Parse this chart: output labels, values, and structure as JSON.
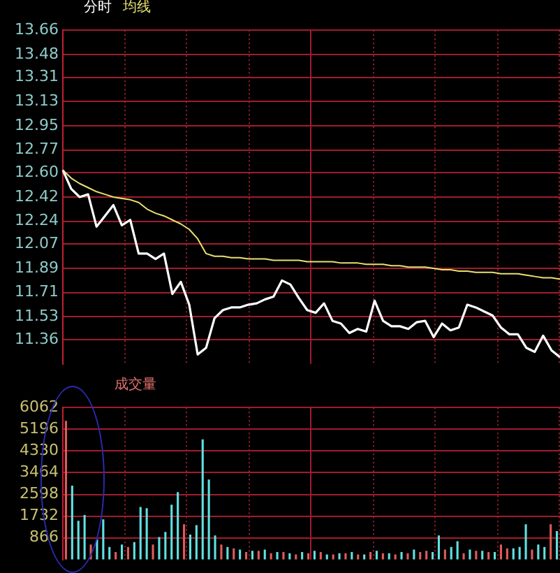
{
  "chart_data": [
    {
      "type": "line",
      "marker": "none",
      "grid": true,
      "tick_labels": "y",
      "categories": [
        null,
        null,
        null,
        null,
        null,
        null,
        null,
        null,
        null,
        null,
        null,
        null,
        null,
        null,
        null,
        null,
        null,
        null,
        null,
        null,
        null,
        null,
        null,
        null,
        null,
        null,
        null,
        null,
        null,
        null,
        null,
        null,
        null,
        null,
        null,
        null,
        null,
        null,
        null,
        null,
        null,
        null,
        null,
        null,
        null,
        null,
        null,
        null,
        null,
        null,
        null,
        null,
        null,
        null,
        null,
        null,
        null,
        null,
        null,
        null
      ],
      "ylim": [
        11.18,
        13.66
      ],
      "yticks": [
        13.66,
        13.48,
        13.31,
        13.13,
        12.95,
        12.77,
        {
          "value": 12.6,
          "label": "12.60"
        },
        12.42,
        12.24,
        12.07,
        11.89,
        11.71,
        11.53,
        11.36
      ],
      "series": [
        {
          "name": "分时",
          "color": "#ffffff",
          "values": [
            12.62,
            12.48,
            12.42,
            12.44,
            12.2,
            12.28,
            12.36,
            12.21,
            12.25,
            12.0,
            12.0,
            11.96,
            12.0,
            11.7,
            11.79,
            11.62,
            11.25,
            11.3,
            11.52,
            11.58,
            11.6,
            11.6,
            11.62,
            11.63,
            11.66,
            11.68,
            11.8,
            11.77,
            11.67,
            11.58,
            11.56,
            11.63,
            11.5,
            11.48,
            11.41,
            11.44,
            11.42,
            11.65,
            11.5,
            11.46,
            11.46,
            11.44,
            11.49,
            11.5,
            11.38,
            11.48,
            11.43,
            11.45,
            11.62,
            11.6,
            11.57,
            11.54,
            11.45,
            11.4,
            11.4,
            11.3,
            11.27,
            11.39,
            11.28,
            11.23
          ]
        },
        {
          "name": "均线",
          "color": "#e8e070",
          "values": [
            12.62,
            12.56,
            12.52,
            12.49,
            12.46,
            12.44,
            12.42,
            12.41,
            12.4,
            12.38,
            12.33,
            12.3,
            12.28,
            12.25,
            12.22,
            12.18,
            12.11,
            12.0,
            11.98,
            11.98,
            11.97,
            11.97,
            11.96,
            11.96,
            11.96,
            11.95,
            11.95,
            11.95,
            11.95,
            11.94,
            11.94,
            11.94,
            11.94,
            11.93,
            11.93,
            11.93,
            11.92,
            11.92,
            11.92,
            11.91,
            11.91,
            11.9,
            11.9,
            11.9,
            11.89,
            11.88,
            11.88,
            11.87,
            11.87,
            11.86,
            11.86,
            11.86,
            11.85,
            11.85,
            11.85,
            11.84,
            11.83,
            11.82,
            11.82,
            11.81
          ]
        }
      ]
    },
    {
      "type": "bar",
      "title": "成交量",
      "grid": true,
      "tick_labels": "y",
      "categories": [
        null,
        null,
        null,
        null,
        null,
        null,
        null,
        null,
        null,
        null,
        null,
        null,
        null,
        null,
        null,
        null,
        null,
        null,
        null,
        null,
        null,
        null,
        null,
        null,
        null,
        null,
        null,
        null,
        null,
        null,
        null,
        null,
        null,
        null,
        null,
        null,
        null,
        null,
        null,
        null,
        null,
        null,
        null,
        null,
        null,
        null,
        null,
        null,
        null,
        null,
        null,
        null,
        null,
        null,
        null,
        null,
        null,
        null,
        null,
        null,
        null,
        null,
        null,
        null,
        null,
        null,
        null,
        null,
        null,
        null,
        null,
        null,
        null,
        null,
        null,
        null,
        null,
        null,
        null,
        null
      ],
      "ylim": [
        0,
        6062
      ],
      "yticks": [
        866,
        1732,
        2598,
        3464,
        4330,
        5196,
        6062
      ],
      "values": [
        5530,
        2950,
        1550,
        1780,
        600,
        800,
        1600,
        500,
        300,
        600,
        500,
        700,
        2100,
        2050,
        600,
        900,
        1100,
        2190,
        2690,
        1410,
        1000,
        1370,
        4790,
        3190,
        960,
        600,
        500,
        450,
        400,
        300,
        350,
        350,
        400,
        250,
        300,
        300,
        250,
        200,
        300,
        250,
        350,
        300,
        200,
        200,
        250,
        250,
        300,
        200,
        200,
        300,
        350,
        250,
        250,
        200,
        300,
        250,
        400,
        300,
        350,
        300,
        960,
        400,
        500,
        730,
        250,
        400,
        350,
        350,
        300,
        300,
        600,
        450,
        450,
        500,
        1410,
        400,
        600,
        500,
        1410,
        1140
      ],
      "colors": [
        "#e05a5a",
        "#60e0e0",
        "#60e0e0",
        "#60e0e0",
        "#e05a5a",
        "#60e0e0",
        "#60e0e0",
        "#60e0e0",
        "#e05a5a",
        "#60e0e0",
        "#e05a5a",
        "#60e0e0",
        "#60e0e0",
        "#60e0e0",
        "#e05a5a",
        "#60e0e0",
        "#60e0e0",
        "#60e0e0",
        "#60e0e0",
        "#e05a5a",
        "#60e0e0",
        "#60e0e0",
        "#60e0e0",
        "#60e0e0",
        "#60e0e0",
        "#e05a5a",
        "#60e0e0",
        "#e05a5a",
        "#60e0e0",
        "#e05a5a",
        "#60e0e0",
        "#e05a5a",
        "#60e0e0",
        "#e05a5a",
        "#60e0e0",
        "#e05a5a",
        "#60e0e0",
        "#e05a5a",
        "#60e0e0",
        "#e05a5a",
        "#60e0e0",
        "#e05a5a",
        "#60e0e0",
        "#e05a5a",
        "#60e0e0",
        "#e05a5a",
        "#60e0e0",
        "#e05a5a",
        "#60e0e0",
        "#e05a5a",
        "#60e0e0",
        "#e05a5a",
        "#60e0e0",
        "#e05a5a",
        "#60e0e0",
        "#e05a5a",
        "#60e0e0",
        "#e05a5a",
        "#e05a5a",
        "#60e0e0",
        "#60e0e0",
        "#e05a5a",
        "#60e0e0",
        "#60e0e0",
        "#e05a5a",
        "#60e0e0",
        "#e05a5a",
        "#60e0e0",
        "#e05a5a",
        "#60e0e0",
        "#e05a5a",
        "#e05a5a",
        "#60e0e0",
        "#60e0e0",
        "#60e0e0",
        "#e05a5a",
        "#60e0e0",
        "#60e0e0",
        "#e05a5a",
        "#60e0e0"
      ]
    }
  ]
}
